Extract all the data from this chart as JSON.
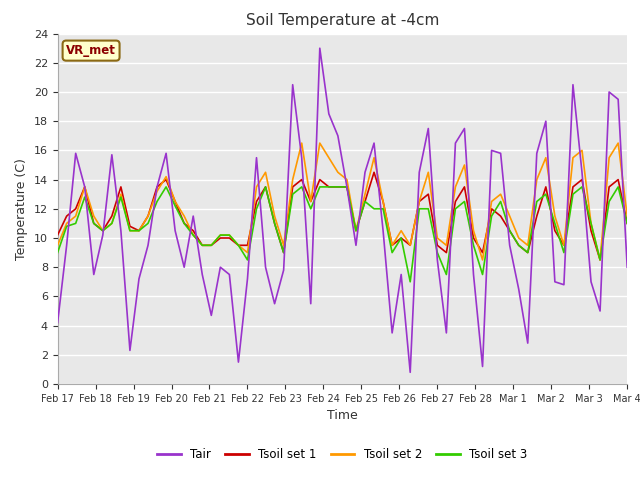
{
  "title": "Soil Temperature at -4cm",
  "xlabel": "Time",
  "ylabel": "Temperature (C)",
  "ylim": [
    0,
    24
  ],
  "xtick_labels": [
    "Feb 17",
    "Feb 18",
    "Feb 19",
    "Feb 20",
    "Feb 21",
    "Feb 22",
    "Feb 23",
    "Feb 24",
    "Feb 25",
    "Feb 26",
    "Feb 27",
    "Feb 28",
    "Mar 1",
    "Mar 2",
    "Mar 3",
    "Mar 4"
  ],
  "legend_entries": [
    "Tair",
    "Tsoil set 1",
    "Tsoil set 2",
    "Tsoil set 3"
  ],
  "line_colors": [
    "#9933cc",
    "#cc0000",
    "#ff9900",
    "#33cc00"
  ],
  "fig_color": "#ffffff",
  "bg_color": "#e8e8e8",
  "grid_color": "#ffffff",
  "watermark_text": "VR_met",
  "tair": [
    4.2,
    9.5,
    15.8,
    13.5,
    7.5,
    10.2,
    15.7,
    10.5,
    2.3,
    7.2,
    9.5,
    13.5,
    15.8,
    10.5,
    8.0,
    11.5,
    7.5,
    4.7,
    8.0,
    7.5,
    1.5,
    7.2,
    15.5,
    8.0,
    5.5,
    7.8,
    20.5,
    15.5,
    5.5,
    23.0,
    18.5,
    17.0,
    13.5,
    9.5,
    14.5,
    16.5,
    10.5,
    3.5,
    7.5,
    0.8,
    14.5,
    17.5,
    8.5,
    3.5,
    16.5,
    17.5,
    7.5,
    1.2,
    16.0,
    15.8,
    9.5,
    6.5,
    2.8,
    15.8,
    18.0,
    7.0,
    6.8,
    20.5,
    14.5,
    7.0,
    5.0,
    20.0,
    19.5,
    8.0
  ],
  "tsoil1": [
    10.2,
    11.5,
    12.0,
    13.5,
    11.0,
    10.5,
    11.5,
    13.5,
    10.8,
    10.5,
    11.5,
    13.5,
    14.0,
    12.5,
    11.0,
    10.5,
    9.5,
    9.5,
    10.0,
    10.0,
    9.5,
    9.5,
    12.5,
    13.5,
    11.0,
    9.0,
    13.5,
    14.0,
    12.5,
    14.0,
    13.5,
    13.5,
    13.5,
    10.5,
    12.5,
    14.5,
    12.5,
    9.5,
    10.0,
    9.5,
    12.5,
    13.0,
    9.5,
    9.0,
    12.5,
    13.5,
    10.0,
    9.0,
    12.0,
    11.5,
    10.5,
    9.5,
    9.0,
    11.5,
    13.5,
    10.5,
    9.5,
    13.5,
    14.0,
    10.5,
    8.5,
    13.5,
    14.0,
    11.0
  ],
  "tsoil2": [
    9.5,
    11.0,
    11.5,
    13.5,
    11.5,
    10.5,
    11.0,
    13.0,
    10.5,
    10.5,
    11.5,
    13.2,
    14.2,
    12.5,
    11.5,
    10.2,
    9.5,
    9.5,
    10.2,
    10.2,
    9.5,
    9.0,
    13.5,
    14.5,
    11.5,
    9.5,
    14.0,
    16.5,
    12.5,
    16.5,
    15.5,
    14.5,
    14.0,
    10.5,
    13.0,
    15.5,
    12.5,
    9.5,
    10.5,
    9.5,
    12.5,
    14.5,
    10.0,
    9.5,
    13.5,
    15.0,
    10.5,
    8.5,
    12.5,
    13.0,
    11.5,
    10.0,
    9.5,
    14.0,
    15.5,
    11.5,
    9.5,
    15.5,
    16.0,
    11.0,
    8.5,
    15.5,
    16.5,
    11.5
  ],
  "tsoil3": [
    9.0,
    10.8,
    11.0,
    12.8,
    11.0,
    10.5,
    11.0,
    12.8,
    10.5,
    10.5,
    11.0,
    12.5,
    13.5,
    12.2,
    11.0,
    10.2,
    9.5,
    9.5,
    10.2,
    10.2,
    9.5,
    8.5,
    12.0,
    13.5,
    11.0,
    9.0,
    13.0,
    13.5,
    12.0,
    13.5,
    13.5,
    13.5,
    13.5,
    10.5,
    12.5,
    12.0,
    12.0,
    9.0,
    10.0,
    7.0,
    12.0,
    12.0,
    9.0,
    7.5,
    12.0,
    12.5,
    9.5,
    7.5,
    11.5,
    12.5,
    10.5,
    9.5,
    9.0,
    12.5,
    13.0,
    11.0,
    9.0,
    13.0,
    13.5,
    11.0,
    8.5,
    12.5,
    13.5,
    11.0
  ]
}
